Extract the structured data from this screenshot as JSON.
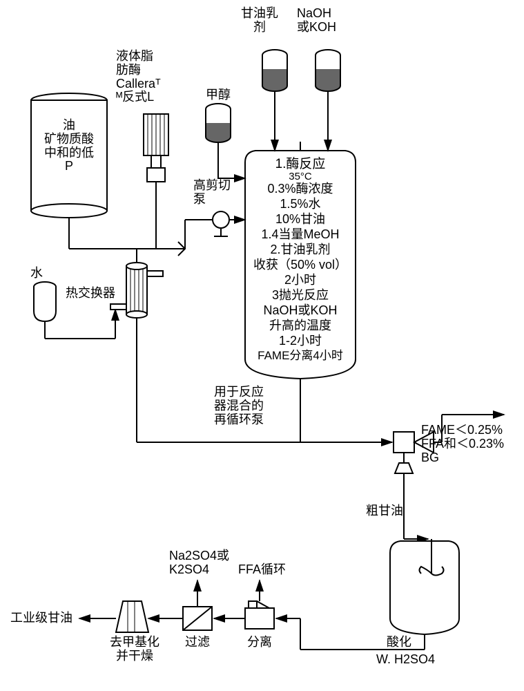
{
  "labels": {
    "glycerin_emulsion_top": "甘油乳\n剂",
    "naoh_koh_top": "NaOH\n或KOH",
    "liquid_lipase": "液体脂\n肪酶\nCalleraᵀ\nᴹ反式L",
    "methanol": "甲醇",
    "oil_mineral": "油\n矿物质酸\n中和的低\nP",
    "high_shear_pump": "高剪切\n泵",
    "water": "水",
    "heat_exchanger": "热交换器",
    "reactor_line1": "1.酶反应",
    "reactor_temp": "35°C",
    "reactor_line2": "0.3%酶浓度",
    "reactor_line3": "1.5%水",
    "reactor_line4": "10%甘油",
    "reactor_line5": "1.4当量MeOH",
    "reactor_line6": "2.甘油乳剂",
    "reactor_line7": "收获（50% vol）",
    "reactor_line8": "2小时",
    "reactor_line9": "3抛光反应",
    "reactor_line10": "NaOH或KOH",
    "reactor_line11": "升高的温度",
    "reactor_line12": "1-2小时",
    "reactor_line13": "FAME分离4小时",
    "recycle_pump": "用于反应\n器混合的\n再循环泵",
    "fame_output": "FAME＜0.25%\nFFA和＜0.23%\nBG",
    "crude_glycerin": "粗甘油",
    "na2so4": "Na2SO4或\nK2SO4",
    "ffa_cycle": "FFA循环",
    "industrial_glycerin": "工业级甘油",
    "demethyl_dry": "去甲基化\n并干燥",
    "filter": "过滤",
    "separate": "分离",
    "acidify": "酸化",
    "wh2so4": "W. H2SO4"
  },
  "colors": {
    "line": "#000000",
    "fill_dark": "#666666",
    "bg": "#ffffff"
  },
  "diagram": {
    "type": "flowchart",
    "line_width": 2
  }
}
